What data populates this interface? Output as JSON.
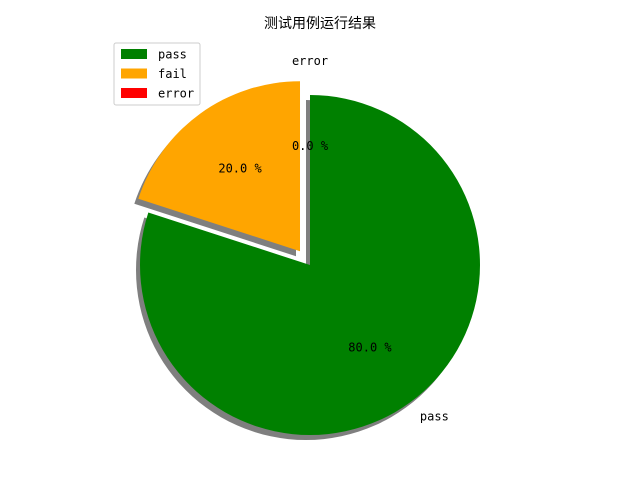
{
  "chart_data": {
    "type": "pie",
    "title": "测试用例运行结果",
    "labels": [
      "pass",
      "fail",
      "error"
    ],
    "values": [
      80.0,
      20.0,
      0.0
    ],
    "colors": [
      "#008000",
      "#ffa500",
      "#ff0000"
    ],
    "pct_labels": [
      "80.0 %",
      "20.0 %",
      "0.0 %"
    ],
    "exploded": [
      "fail",
      "error"
    ],
    "shadow": true,
    "legend": {
      "position": "upper-left",
      "entries": [
        "pass",
        "fail",
        "error"
      ]
    }
  }
}
